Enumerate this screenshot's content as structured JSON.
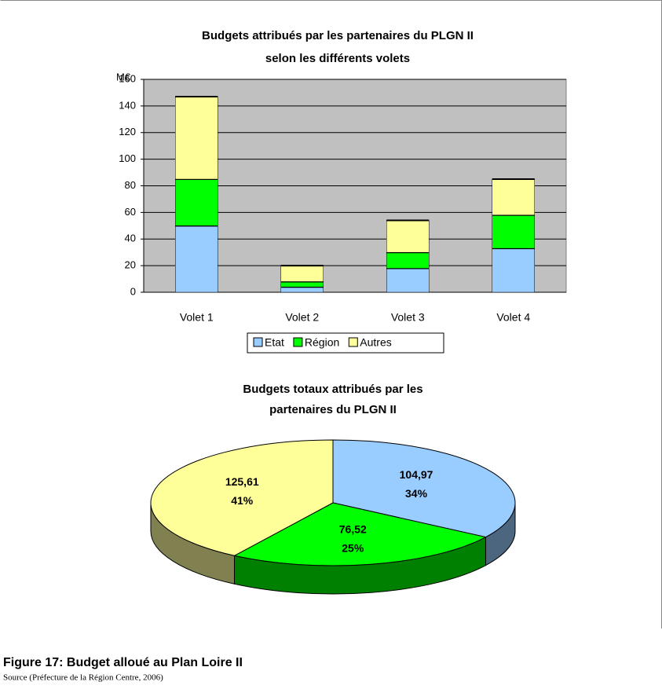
{
  "chart_data": [
    {
      "type": "stacked_bar",
      "title": "Budgets attribués par les partenaires du PLGN II",
      "subtitle": "selon les différents volets",
      "y_unit": "M€",
      "categories": [
        "Volet 1",
        "Volet 2",
        "Volet 3",
        "Volet 4"
      ],
      "series": [
        {
          "name": "Etat",
          "color": "#99ccff",
          "values": [
            50,
            4,
            18,
            33
          ]
        },
        {
          "name": "Région",
          "color": "#00ff00",
          "values": [
            35,
            4,
            12,
            25
          ]
        },
        {
          "name": "Autres",
          "color": "#ffff99",
          "values": [
            62,
            12,
            24,
            27
          ]
        }
      ],
      "ylim": [
        0,
        160
      ],
      "yticks": [
        0,
        20,
        40,
        60,
        80,
        100,
        120,
        140,
        160
      ],
      "grid": true,
      "legend": "bottom"
    },
    {
      "type": "pie3d",
      "title": "Budgets totaux attribués par les",
      "subtitle": "partenaires du PLGN II",
      "categories": [
        "Etat",
        "Région",
        "Autres"
      ],
      "values": [
        104.97,
        76.52,
        125.61
      ],
      "value_labels": [
        "104,97",
        "76,52",
        "125,61"
      ],
      "percent_labels": [
        "34%",
        "25%",
        "41%"
      ],
      "colors": [
        "#99ccff",
        "#00ff00",
        "#ffff99"
      ],
      "side_colors": [
        "#4d6680",
        "#008000",
        "#808050"
      ]
    }
  ],
  "caption": "Figure 17: Budget alloué au Plan Loire II",
  "source": "Source (Préfecture de la Région Centre, 2006)"
}
